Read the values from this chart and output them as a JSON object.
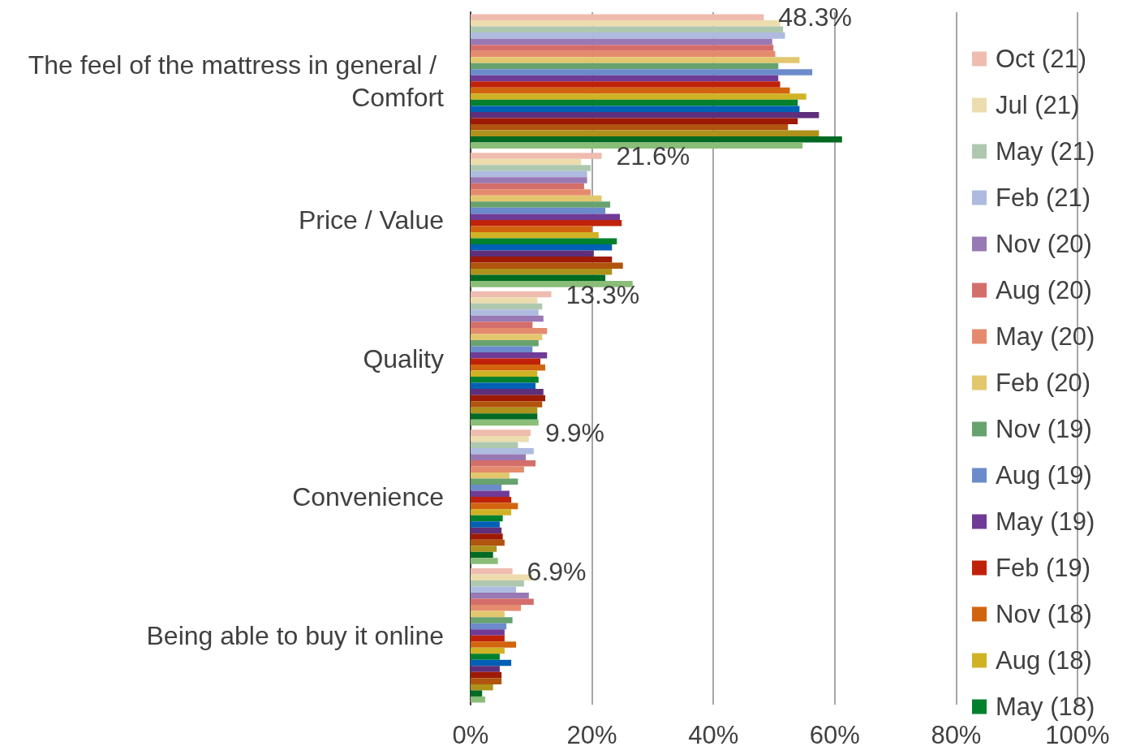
{
  "chart_data": {
    "type": "bar",
    "orientation": "horizontal",
    "categories": [
      "The feel of the mattress in general / Comfort",
      "Price / Value",
      "Quality",
      "Convenience",
      "Being able to buy it online"
    ],
    "series": [
      {
        "name": "Oct (21)",
        "color": "#efbcb0",
        "values": [
          48.3,
          21.6,
          13.3,
          9.9,
          6.9
        ],
        "value_labels": [
          "48.3%",
          "21.6%",
          "13.3%",
          "9.9%",
          "6.9%"
        ]
      },
      {
        "name": "Jul (21)",
        "color": "#ecdcae",
        "values": [
          51.0,
          18.2,
          11.0,
          9.6,
          10.2
        ]
      },
      {
        "name": "May (21)",
        "color": "#aec8b0",
        "values": [
          51.5,
          19.8,
          11.8,
          7.8,
          8.8
        ]
      },
      {
        "name": "Feb (21)",
        "color": "#aebbdf",
        "values": [
          51.8,
          19.2,
          11.2,
          10.4,
          7.5
        ]
      },
      {
        "name": "Nov (20)",
        "color": "#9879b3",
        "values": [
          49.7,
          19.2,
          12.0,
          9.1,
          9.6
        ]
      },
      {
        "name": "Aug (20)",
        "color": "#d46e6b",
        "values": [
          49.9,
          18.7,
          10.2,
          10.7,
          10.4
        ]
      },
      {
        "name": "May (20)",
        "color": "#e58b6d",
        "values": [
          50.2,
          19.8,
          12.6,
          8.8,
          8.3
        ]
      },
      {
        "name": "Feb (20)",
        "color": "#e2c76f",
        "values": [
          54.2,
          21.6,
          11.8,
          6.4,
          5.6
        ]
      },
      {
        "name": "Nov (19)",
        "color": "#68a26f",
        "values": [
          50.7,
          23.0,
          11.2,
          7.8,
          6.9
        ]
      },
      {
        "name": "Aug (19)",
        "color": "#6b8bcb",
        "values": [
          56.3,
          22.2,
          10.2,
          5.1,
          5.9
        ]
      },
      {
        "name": "May (19)",
        "color": "#703b97",
        "values": [
          50.7,
          24.6,
          12.6,
          6.4,
          5.6
        ]
      },
      {
        "name": "Feb (19)",
        "color": "#bf2209",
        "values": [
          51.0,
          24.9,
          11.5,
          6.7,
          5.6
        ]
      },
      {
        "name": "Nov (18)",
        "color": "#d2640f",
        "values": [
          52.6,
          20.0,
          12.3,
          7.8,
          7.5
        ]
      },
      {
        "name": "Aug (18)",
        "color": "#d0b225",
        "values": [
          55.3,
          21.1,
          11.0,
          6.7,
          5.6
        ]
      },
      {
        "name": "May (18)",
        "color": "#00802d",
        "values": [
          53.9,
          24.1,
          11.2,
          5.3,
          4.8
        ]
      },
      {
        "color": "#0060b5",
        "values": [
          54.2,
          23.3,
          10.7,
          4.8,
          6.7
        ]
      },
      {
        "color": "#5e2f7b",
        "values": [
          57.4,
          20.3,
          12.0,
          5.1,
          4.8
        ]
      },
      {
        "color": "#9e1a04",
        "values": [
          53.9,
          23.3,
          12.3,
          5.3,
          5.1
        ]
      },
      {
        "color": "#b0540e",
        "values": [
          52.3,
          25.1,
          11.8,
          5.6,
          5.1
        ]
      },
      {
        "color": "#ae921b",
        "values": [
          57.4,
          23.3,
          11.0,
          4.3,
          3.7
        ]
      },
      {
        "color": "#006a23",
        "values": [
          61.2,
          22.2,
          11.0,
          3.7,
          1.9
        ]
      },
      {
        "color": "#8abd78",
        "values": [
          54.7,
          26.7,
          11.2,
          4.5,
          2.4
        ]
      }
    ],
    "xlim": [
      0,
      100
    ],
    "xticks": [
      {
        "value": 0,
        "label": "0%"
      },
      {
        "value": 20,
        "label": "20%"
      },
      {
        "value": 40,
        "label": "40%"
      },
      {
        "value": 60,
        "label": "60%"
      },
      {
        "value": 80,
        "label": "80%"
      },
      {
        "value": 100,
        "label": "100%"
      }
    ],
    "grid": "x",
    "legend": "right"
  }
}
